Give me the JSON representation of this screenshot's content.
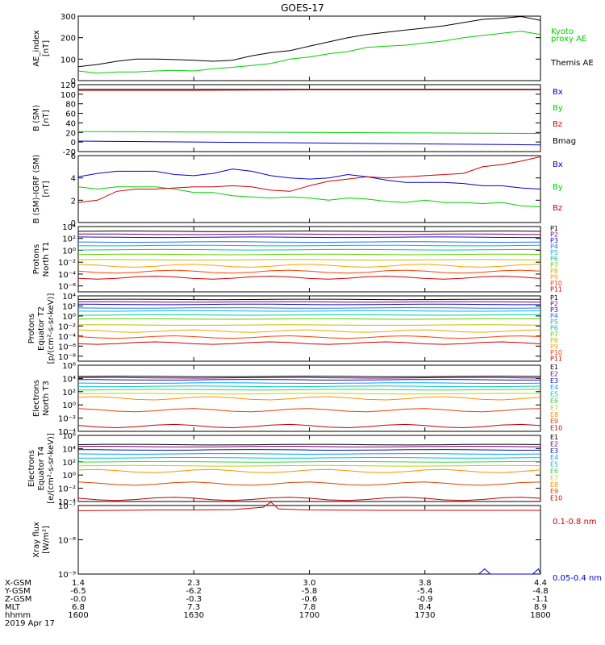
{
  "title": "GOES-17",
  "colors": {
    "black": "#000000",
    "green": "#00d000",
    "red": "#d00000",
    "blue": "#0000d0"
  },
  "panels": [
    {
      "id": "ae",
      "ylabel": [
        "AE_index",
        "[nT]"
      ],
      "log": false,
      "ylim": [
        0,
        300
      ],
      "yticks": [
        0,
        100,
        200,
        300
      ],
      "ytick_labels": [
        "0",
        "100",
        "200",
        "300"
      ],
      "legend": [
        {
          "text": "Kyoto",
          "color": "green"
        },
        {
          "text": "proxy AE",
          "color": "green"
        },
        {
          "text": "",
          "color": "black"
        },
        {
          "text": "Themis AE",
          "color": "black"
        }
      ]
    },
    {
      "id": "bsm",
      "ylabel": [
        "B (SM)",
        "[nT]"
      ],
      "log": false,
      "ylim": [
        -20,
        120
      ],
      "yticks": [
        -20,
        0,
        20,
        40,
        60,
        80,
        100,
        120
      ],
      "ytick_labels": [
        "-20",
        "0",
        "20",
        "40",
        "60",
        "80",
        "100",
        "120"
      ],
      "legend": [
        {
          "text": "Bx",
          "color": "blue"
        },
        {
          "text": "By",
          "color": "green"
        },
        {
          "text": "Bz",
          "color": "red"
        },
        {
          "text": "Bmag",
          "color": "black"
        }
      ]
    },
    {
      "id": "bdiff",
      "ylabel": [
        "B (SM)-IGRF (SM)",
        "[nT]"
      ],
      "log": false,
      "ylim": [
        0,
        6
      ],
      "yticks": [
        0,
        2,
        4,
        6
      ],
      "ytick_labels": [
        "0",
        "2",
        "4",
        "6"
      ],
      "legend": [
        {
          "text": "Bx",
          "color": "blue"
        },
        {
          "text": "By",
          "color": "green"
        },
        {
          "text": "Bz",
          "color": "red"
        }
      ]
    },
    {
      "id": "pn",
      "ylabel": [
        "Protons",
        "North T1"
      ],
      "log": true,
      "ylim": [
        -7,
        4
      ],
      "yticks": [
        -6,
        -4,
        -2,
        0,
        2,
        4
      ],
      "ytick_labels": [
        "10⁻⁶",
        "10⁻⁴",
        "10⁻²",
        "10⁰",
        "10²",
        "10⁴"
      ],
      "legend": [
        {
          "text": "P1"
        },
        {
          "text": "P2"
        },
        {
          "text": "P3"
        },
        {
          "text": "P4"
        },
        {
          "text": "P5"
        },
        {
          "text": "P6"
        },
        {
          "text": "P7"
        },
        {
          "text": "P8"
        },
        {
          "text": "P9"
        },
        {
          "text": "P10"
        },
        {
          "text": "P11"
        }
      ]
    },
    {
      "id": "pe",
      "ylabel": [
        "Protons",
        "Equator T2",
        "[p/(cm²-s-sr-keV)]"
      ],
      "log": true,
      "ylim": [
        -9,
        4
      ],
      "yticks": [
        -8,
        -6,
        -4,
        -2,
        0,
        2,
        4
      ],
      "ytick_labels": [
        "10⁻⁸",
        "10⁻⁶",
        "10⁻⁴",
        "10⁻²",
        "10⁰",
        "10²",
        "10⁴"
      ],
      "legend": [
        {
          "text": "P1"
        },
        {
          "text": "P2"
        },
        {
          "text": "P3"
        },
        {
          "text": "P4"
        },
        {
          "text": "P5"
        },
        {
          "text": "P6"
        },
        {
          "text": "P7"
        },
        {
          "text": "P8"
        },
        {
          "text": "P9"
        },
        {
          "text": "P10"
        },
        {
          "text": "P11"
        }
      ]
    },
    {
      "id": "en",
      "ylabel": [
        "Electrons",
        "North T3"
      ],
      "log": true,
      "ylim": [
        -4,
        6
      ],
      "yticks": [
        -4,
        -2,
        0,
        2,
        4,
        6
      ],
      "ytick_labels": [
        "10⁻⁴",
        "10⁻²",
        "10⁰",
        "10²",
        "10⁴",
        "10⁶"
      ],
      "legend": [
        {
          "text": "E1"
        },
        {
          "text": "E2"
        },
        {
          "text": "E3"
        },
        {
          "text": "E4"
        },
        {
          "text": "E5"
        },
        {
          "text": "E6"
        },
        {
          "text": "E7"
        },
        {
          "text": "E8"
        },
        {
          "text": "E9"
        },
        {
          "text": "E10"
        }
      ]
    },
    {
      "id": "ee",
      "ylabel": [
        "Electrons",
        "Equator T4",
        "[e/(cm²-s-sr-keV)]"
      ],
      "log": true,
      "ylim": [
        -4,
        6
      ],
      "yticks": [
        -4,
        -2,
        0,
        2,
        4,
        6
      ],
      "ytick_labels": [
        "10⁻⁴",
        "10⁻²",
        "10⁰",
        "10²",
        "10⁴",
        "10⁶"
      ],
      "legend": [
        {
          "text": "E1"
        },
        {
          "text": "E2"
        },
        {
          "text": "E3"
        },
        {
          "text": "E4"
        },
        {
          "text": "E5"
        },
        {
          "text": "E6"
        },
        {
          "text": "E7"
        },
        {
          "text": "E8"
        },
        {
          "text": "E9"
        },
        {
          "text": "E10"
        }
      ]
    },
    {
      "id": "xr",
      "ylabel": [
        "Xray flux",
        "[W/m²]"
      ],
      "log": true,
      "ylim": [
        -9,
        -7
      ],
      "yticks": [
        -9,
        -8,
        -7
      ],
      "ytick_labels": [
        "10⁻⁹",
        "10⁻⁸",
        "10⁻⁷"
      ],
      "legend": [
        {
          "text": "0.1-0.8 nm",
          "color": "red"
        },
        {
          "text": "0.05-0.4 nm",
          "color": "blue"
        }
      ]
    }
  ],
  "channel_colors": {
    "P": [
      "#000000",
      "#7a007a",
      "#1010c0",
      "#2070ff",
      "#00b8e0",
      "#00c8a0",
      "#60d000",
      "#c0c000",
      "#ffa000",
      "#ff4000",
      "#d00000"
    ],
    "E": [
      "#000000",
      "#7a007a",
      "#1010c0",
      "#00a0ff",
      "#00c8c0",
      "#40d040",
      "#c0d000",
      "#ff9000",
      "#e04000",
      "#c00000"
    ]
  },
  "x_axis": {
    "time_range_min": [
      0,
      120
    ],
    "ticks_min": [
      0,
      30,
      60,
      90,
      120
    ],
    "rows": [
      {
        "label": "X-GSM",
        "values": [
          "1.4",
          "2.3",
          "3.0",
          "3.8",
          "4.4"
        ]
      },
      {
        "label": "Y-GSM",
        "values": [
          "-6.5",
          "-6.2",
          "-5.8",
          "-5.4",
          "-4.8"
        ]
      },
      {
        "label": "Z-GSM",
        "values": [
          "-0.0",
          "-0.3",
          "-0.6",
          "-0.9",
          "-1.1"
        ]
      },
      {
        "label": "MLT",
        "values": [
          "6.8",
          "7.3",
          "7.8",
          "8.4",
          "8.9"
        ]
      },
      {
        "label": "hhmm",
        "values": [
          "1600",
          "1630",
          "1700",
          "1730",
          "1800"
        ]
      }
    ],
    "date": "2019 Apr 17"
  },
  "chart_data": {
    "type": "line",
    "x_unit": "minutes after 1600 UT",
    "ae": {
      "kyoto_proxy": {
        "x": [
          0,
          5,
          10,
          15,
          20,
          25,
          30,
          35,
          40,
          45,
          50,
          55,
          60,
          65,
          70,
          75,
          80,
          85,
          90,
          95,
          100,
          105,
          110,
          115,
          120
        ],
        "y": [
          45,
          35,
          40,
          40,
          45,
          48,
          45,
          55,
          62,
          70,
          80,
          100,
          110,
          125,
          135,
          155,
          160,
          165,
          175,
          185,
          200,
          210,
          220,
          230,
          215
        ]
      },
      "themis": {
        "x": [
          0,
          5,
          10,
          15,
          20,
          25,
          30,
          35,
          40,
          45,
          50,
          55,
          60,
          65,
          70,
          75,
          80,
          85,
          90,
          95,
          100,
          105,
          110,
          115,
          120
        ],
        "y": [
          65,
          75,
          90,
          100,
          100,
          98,
          95,
          90,
          95,
          115,
          130,
          140,
          160,
          180,
          200,
          215,
          225,
          235,
          245,
          255,
          270,
          285,
          290,
          298,
          280
        ]
      }
    },
    "b_sm": {
      "Bmag": {
        "x": [
          0,
          30,
          60,
          90,
          120
        ],
        "y": [
          110,
          110,
          110,
          110,
          110
        ]
      },
      "Bz": {
        "x": [
          0,
          30,
          60,
          90,
          120
        ],
        "y": [
          108,
          108,
          109,
          109,
          109
        ]
      },
      "By": {
        "x": [
          0,
          30,
          60,
          90,
          120
        ],
        "y": [
          22,
          21,
          20,
          19,
          18
        ]
      },
      "Bx": {
        "x": [
          0,
          30,
          60,
          90,
          120
        ],
        "y": [
          2,
          0,
          -2,
          -4,
          -6
        ]
      }
    },
    "b_diff": {
      "Bx": {
        "x": [
          0,
          5,
          10,
          15,
          20,
          25,
          30,
          35,
          40,
          45,
          50,
          55,
          60,
          65,
          70,
          75,
          80,
          85,
          90,
          95,
          100,
          105,
          110,
          115,
          120
        ],
        "y": [
          4.1,
          4.4,
          4.6,
          4.6,
          4.6,
          4.3,
          4.2,
          4.4,
          4.8,
          4.6,
          4.2,
          4.0,
          3.9,
          4.0,
          4.3,
          4.1,
          3.8,
          3.6,
          3.6,
          3.6,
          3.5,
          3.3,
          3.3,
          3.1,
          3.0
        ]
      },
      "By": {
        "x": [
          0,
          5,
          10,
          15,
          20,
          25,
          30,
          35,
          40,
          45,
          50,
          55,
          60,
          65,
          70,
          75,
          80,
          85,
          90,
          95,
          100,
          105,
          110,
          115,
          120
        ],
        "y": [
          3.2,
          3.0,
          3.2,
          3.2,
          3.2,
          3.0,
          2.7,
          2.7,
          2.4,
          2.3,
          2.2,
          2.3,
          2.2,
          2.0,
          2.2,
          2.1,
          1.9,
          1.8,
          2.0,
          1.8,
          1.8,
          1.7,
          1.8,
          1.5,
          1.4
        ]
      },
      "Bz": {
        "x": [
          0,
          5,
          10,
          15,
          20,
          25,
          30,
          35,
          40,
          45,
          50,
          55,
          60,
          65,
          70,
          75,
          80,
          85,
          90,
          95,
          100,
          105,
          110,
          115,
          120
        ],
        "y": [
          1.8,
          2.0,
          2.8,
          3.0,
          3.0,
          3.1,
          3.2,
          3.2,
          3.3,
          3.2,
          2.9,
          2.8,
          3.3,
          3.7,
          3.9,
          4.1,
          4.0,
          4.1,
          4.2,
          4.3,
          4.4,
          5.0,
          5.2,
          5.5,
          5.9
        ]
      }
    },
    "protons_north_log10": [
      3.2,
      2.7,
      2.2,
      1.4,
      0.8,
      0.1,
      -0.7,
      -1.6,
      -2.6,
      -3.6,
      -4.6
    ],
    "protons_equator_log10": [
      3.3,
      2.8,
      2.3,
      1.6,
      1.0,
      0.2,
      -0.6,
      -1.8,
      -3.0,
      -4.2,
      -5.4
    ],
    "electrons_north_log10": [
      4.3,
      4.1,
      3.8,
      3.3,
      2.8,
      2.3,
      1.7,
      1.0,
      -0.8,
      -3.2
    ],
    "electrons_equator_log10": [
      4.6,
      4.3,
      3.8,
      3.2,
      2.6,
      2.0,
      1.4,
      0.6,
      -1.3,
      -3.6
    ],
    "xray_long_log10": {
      "x": [
        0,
        10,
        20,
        30,
        40,
        48,
        50,
        52,
        60,
        80,
        100,
        120
      ],
      "y": [
        -7.15,
        -7.14,
        -7.13,
        -7.13,
        -7.12,
        -7.05,
        -6.9,
        -7.1,
        -7.13,
        -7.14,
        -7.14,
        -7.14
      ]
    },
    "xray_short_log10": {
      "x": [
        104,
        105.5,
        107,
        118,
        119.5,
        120
      ],
      "y": [
        -9.0,
        -8.85,
        -9.0,
        -9.0,
        -8.85,
        -9.0
      ]
    }
  }
}
